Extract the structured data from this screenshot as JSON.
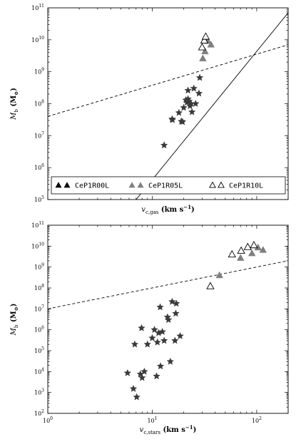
{
  "chart_data": [
    {
      "type": "scatter",
      "xlabel": "v_c,gas (km s⁻¹)",
      "xlabel_main": "v",
      "xlabel_sub": "c,gas",
      "xlabel_units": " (km s",
      "xlabel_exp": "−1",
      "xlabel_close": ")",
      "ylabel": "M_b (M⊙)",
      "ylabel_main": "M",
      "ylabel_sub": "b",
      "ylabel_units": " (M",
      "ylabel_units_sub": "⊙",
      "ylabel_close": ")",
      "xscale": "log",
      "yscale": "log",
      "xlim": [
        1,
        200
      ],
      "ylim": [
        100000,
        100000000000
      ],
      "x_tick_labels": [],
      "y_ticks": [
        {
          "value": 100000,
          "base": "10",
          "exp": "5"
        },
        {
          "value": 1000000,
          "base": "10",
          "exp": "6"
        },
        {
          "value": 10000000,
          "base": "10",
          "exp": "7"
        },
        {
          "value": 100000000,
          "base": "10",
          "exp": "8"
        },
        {
          "value": 1000000000,
          "base": "10",
          "exp": "9"
        },
        {
          "value": 10000000000,
          "base": "10",
          "exp": "10"
        },
        {
          "value": 100000000000,
          "base": "10",
          "exp": "11"
        }
      ],
      "legend": {
        "placement": "lower-center",
        "entries": [
          {
            "label": "CeP1R00L",
            "color": "#000000",
            "filled": true
          },
          {
            "label": "CeP1R05L",
            "color": "#7f7f7f",
            "filled": true
          },
          {
            "label": "CeP1R10L",
            "color": "#000000",
            "filled": false
          }
        ]
      },
      "lines": [
        {
          "style": "solid",
          "points": [
            [
              7.0,
              100000
            ],
            [
              200,
              70000000000
            ]
          ]
        },
        {
          "style": "dashed",
          "points": [
            [
              1,
              40000000
            ],
            [
              200,
              7000000000
            ]
          ]
        }
      ],
      "series": [
        {
          "marker": "star",
          "color": "#3a3a3a",
          "filled": true,
          "points": [
            [
              13,
              5000000
            ],
            [
              15.5,
              33000000
            ],
            [
              15.6,
              31000000
            ],
            [
              18,
              52000000
            ],
            [
              19,
              28000000
            ],
            [
              19.5,
              27000000
            ],
            [
              20,
              75000000
            ],
            [
              21,
              130000000
            ],
            [
              21.5,
              110000000
            ],
            [
              22,
              260000000
            ],
            [
              22.5,
              120000000
            ],
            [
              23,
              85000000
            ],
            [
              23.5,
              100000000
            ],
            [
              24,
              55000000
            ],
            [
              25,
              300000000
            ],
            [
              26,
              100000000
            ],
            [
              28,
              210000000
            ],
            [
              28.5,
              650000000
            ],
            [
              22,
              140000000
            ]
          ]
        },
        {
          "name": "CeP1R05L",
          "marker": "triangle",
          "color": "#7f7f7f",
          "filled": true,
          "points": [
            [
              30.5,
              2600000000
            ],
            [
              32,
              4300000000
            ],
            [
              34,
              9200000000
            ],
            [
              36.5,
              7000000000
            ]
          ]
        },
        {
          "name": "CeP1R10L",
          "marker": "triangle",
          "color": "#000000",
          "filled": false,
          "points": [
            [
              30,
              5800000000
            ],
            [
              31.5,
              9500000000
            ],
            [
              32.5,
              12500000000
            ]
          ]
        }
      ]
    },
    {
      "type": "scatter",
      "xlabel": "v_c,stars (km s⁻¹)",
      "xlabel_main": "v",
      "xlabel_sub": "c,stars",
      "xlabel_units": " (km s",
      "xlabel_exp": "−1",
      "xlabel_close": ")",
      "ylabel": "M_b (M⊙)",
      "ylabel_main": "M",
      "ylabel_sub": "b",
      "ylabel_units": " (M",
      "ylabel_units_sub": "⊙",
      "ylabel_close": ")",
      "xscale": "log",
      "yscale": "log",
      "xlim": [
        1,
        200
      ],
      "ylim": [
        100,
        100000000000
      ],
      "x_tick_labels": [
        {
          "value": 1,
          "base": "10",
          "exp": "0"
        },
        {
          "value": 10,
          "base": "10",
          "exp": "1"
        },
        {
          "value": 100,
          "base": "10",
          "exp": "2"
        }
      ],
      "y_ticks": [
        {
          "value": 100,
          "base": "10",
          "exp": "2"
        },
        {
          "value": 1000,
          "base": "10",
          "exp": "3"
        },
        {
          "value": 10000,
          "base": "10",
          "exp": "4"
        },
        {
          "value": 100000,
          "base": "10",
          "exp": "5"
        },
        {
          "value": 1000000,
          "base": "10",
          "exp": "6"
        },
        {
          "value": 10000000,
          "base": "10",
          "exp": "7"
        },
        {
          "value": 100000000,
          "base": "10",
          "exp": "8"
        },
        {
          "value": 1000000000,
          "base": "10",
          "exp": "9"
        },
        {
          "value": 10000000000,
          "base": "10",
          "exp": "10"
        },
        {
          "value": 100000000000,
          "base": "10",
          "exp": "11"
        }
      ],
      "lines": [
        {
          "style": "dashed",
          "points": [
            [
              1,
              10000000
            ],
            [
              200,
              2000000000
            ]
          ]
        }
      ],
      "series": [
        {
          "marker": "star",
          "color": "#3a3a3a",
          "filled": true,
          "points": [
            [
              5.8,
              8500
            ],
            [
              6.6,
              1500
            ],
            [
              6.8,
              200000
            ],
            [
              7.1,
              600
            ],
            [
              7.7,
              7500
            ],
            [
              7.9,
              1200000
            ],
            [
              8.0,
              5000
            ],
            [
              8.4,
              10000
            ],
            [
              9.0,
              200000
            ],
            [
              10.0,
              400000
            ],
            [
              10.5,
              1000000
            ],
            [
              11.0,
              6000
            ],
            [
              11.2,
              250000
            ],
            [
              11.5,
              700000
            ],
            [
              11.9,
              12000000
            ],
            [
              12.0,
              18000
            ],
            [
              12.5,
              800000
            ],
            [
              13.0,
              300000
            ],
            [
              14.0,
              4000000
            ],
            [
              14.3,
              3000000
            ],
            [
              14.9,
              30000
            ],
            [
              15.5,
              22000000
            ],
            [
              16.5,
              300000
            ],
            [
              16.8,
              6000000
            ],
            [
              17.0,
              18000000
            ],
            [
              18.5,
              500000
            ]
          ]
        },
        {
          "name": "CeP1R05L",
          "marker": "triangle",
          "color": "#7f7f7f",
          "filled": true,
          "points": [
            [
              44,
              400000000
            ],
            [
              70,
              2700000000
            ],
            [
              90,
              4500000000
            ],
            [
              103,
              8500000000
            ],
            [
              115,
              6500000000
            ]
          ]
        },
        {
          "name": "CeP1R10L",
          "marker": "triangle",
          "color": "#000000",
          "filled": false,
          "points": [
            [
              36,
              120000000
            ],
            [
              58,
              4000000000
            ],
            [
              71,
              6000000000
            ],
            [
              82,
              9000000000
            ],
            [
              94,
              11000000000
            ]
          ]
        }
      ]
    }
  ]
}
